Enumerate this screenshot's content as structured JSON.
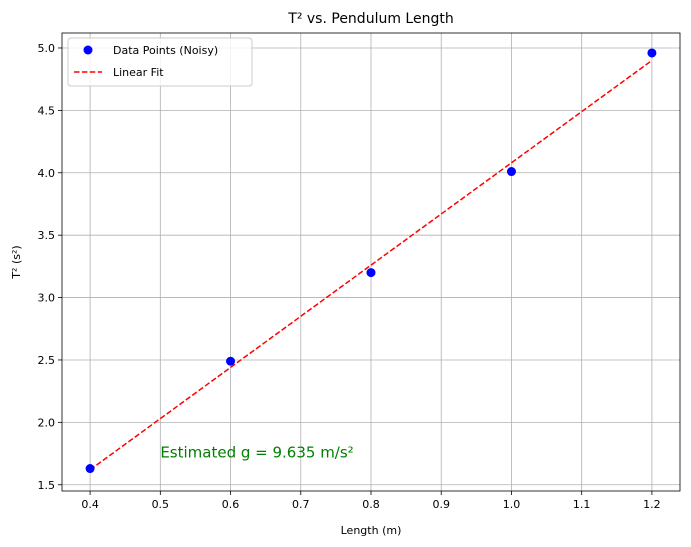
{
  "chart_data": {
    "type": "scatter",
    "title": "T² vs. Pendulum Length",
    "xlabel": "Length (m)",
    "ylabel": "T² (s²)",
    "xlim": [
      0.36,
      1.24
    ],
    "ylim": [
      1.45,
      5.12
    ],
    "xticks": [
      0.4,
      0.5,
      0.6,
      0.7,
      0.8,
      0.9,
      1.0,
      1.1,
      1.2
    ],
    "xtick_labels": [
      "0.4",
      "0.5",
      "0.6",
      "0.7",
      "0.8",
      "0.9",
      "1.0",
      "1.1",
      "1.2"
    ],
    "yticks": [
      1.5,
      2.0,
      2.5,
      3.0,
      3.5,
      4.0,
      4.5,
      5.0
    ],
    "ytick_labels": [
      "1.5",
      "2.0",
      "2.5",
      "3.0",
      "3.5",
      "4.0",
      "4.5",
      "5.0"
    ],
    "grid": true,
    "legend_position": "top-left",
    "series": [
      {
        "name": "Data Points (Noisy)",
        "kind": "scatter",
        "color": "#0000ff",
        "x": [
          0.4,
          0.6,
          0.8,
          1.0,
          1.2
        ],
        "y": [
          1.63,
          2.49,
          3.2,
          4.01,
          4.96
        ]
      },
      {
        "name": "Linear Fit",
        "kind": "line",
        "style": "dashed",
        "color": "#ff0000",
        "x": [
          0.4,
          1.2
        ],
        "y": [
          1.62,
          4.9
        ]
      }
    ],
    "annotation": {
      "text": "Estimated g = 9.635 m/s²",
      "x": 0.5,
      "y": 1.72,
      "color": "#008000"
    }
  }
}
